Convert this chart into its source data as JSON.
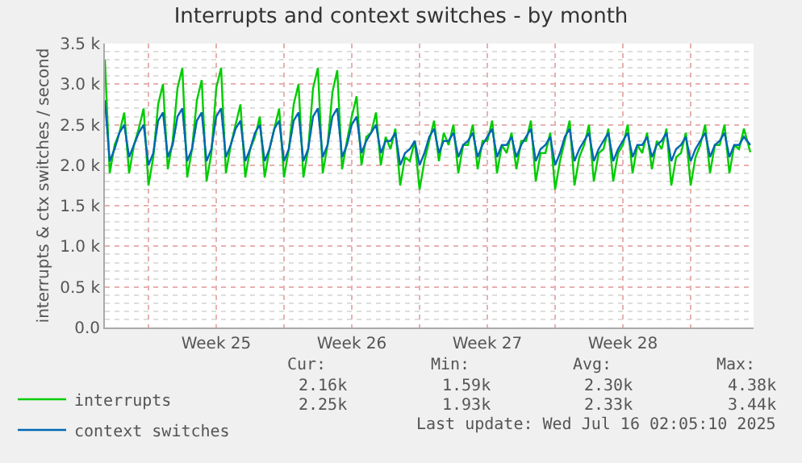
{
  "chart_data": {
    "type": "line",
    "title": "Interrupts and context switches - by month",
    "ylabel": "interrupts & ctx switches / second",
    "x": [
      "2025-06-12T18:00",
      "2025-06-13T00:00",
      "2025-06-13T06:00",
      "2025-06-13T12:00",
      "2025-06-13T18:00",
      "2025-06-14T00:00",
      "2025-06-14T06:00",
      "2025-06-14T12:00",
      "2025-06-14T18:00",
      "2025-06-15T00:00",
      "2025-06-15T06:00",
      "2025-06-15T12:00",
      "2025-06-15T18:00",
      "2025-06-16T00:00",
      "2025-06-16T06:00",
      "2025-06-16T12:00",
      "2025-06-16T18:00",
      "2025-06-17T00:00",
      "2025-06-17T06:00",
      "2025-06-17T12:00",
      "2025-06-17T18:00",
      "2025-06-18T00:00",
      "2025-06-18T06:00",
      "2025-06-18T12:00",
      "2025-06-18T18:00",
      "2025-06-19T00:00",
      "2025-06-19T06:00",
      "2025-06-19T12:00",
      "2025-06-19T18:00",
      "2025-06-20T00:00",
      "2025-06-20T06:00",
      "2025-06-20T12:00",
      "2025-06-20T18:00",
      "2025-06-21T00:00",
      "2025-06-21T06:00",
      "2025-06-21T12:00",
      "2025-06-21T18:00",
      "2025-06-22T00:00",
      "2025-06-22T06:00",
      "2025-06-22T12:00",
      "2025-06-22T18:00",
      "2025-06-23T00:00",
      "2025-06-23T06:00",
      "2025-06-23T12:00",
      "2025-06-23T18:00",
      "2025-06-24T00:00",
      "2025-06-24T06:00",
      "2025-06-24T12:00",
      "2025-06-24T18:00",
      "2025-06-25T00:00",
      "2025-06-25T06:00",
      "2025-06-25T12:00",
      "2025-06-25T18:00",
      "2025-06-26T00:00",
      "2025-06-26T06:00",
      "2025-06-26T12:00",
      "2025-06-26T18:00",
      "2025-06-27T00:00",
      "2025-06-27T06:00",
      "2025-06-27T12:00",
      "2025-06-27T18:00",
      "2025-06-28T00:00",
      "2025-06-28T06:00",
      "2025-06-28T12:00",
      "2025-06-28T18:00",
      "2025-06-29T00:00",
      "2025-06-29T06:00",
      "2025-06-29T12:00",
      "2025-06-29T18:00",
      "2025-06-30T00:00",
      "2025-06-30T06:00",
      "2025-06-30T12:00",
      "2025-06-30T18:00",
      "2025-07-01T00:00",
      "2025-07-01T06:00",
      "2025-07-01T12:00",
      "2025-07-01T18:00",
      "2025-07-02T00:00",
      "2025-07-02T06:00",
      "2025-07-02T12:00",
      "2025-07-02T18:00",
      "2025-07-03T00:00",
      "2025-07-03T06:00",
      "2025-07-03T12:00",
      "2025-07-03T18:00",
      "2025-07-04T00:00",
      "2025-07-04T06:00",
      "2025-07-04T12:00",
      "2025-07-04T18:00",
      "2025-07-05T00:00",
      "2025-07-05T06:00",
      "2025-07-05T12:00",
      "2025-07-05T18:00",
      "2025-07-06T00:00",
      "2025-07-06T06:00",
      "2025-07-06T12:00",
      "2025-07-06T18:00",
      "2025-07-07T00:00",
      "2025-07-07T06:00",
      "2025-07-07T12:00",
      "2025-07-07T18:00",
      "2025-07-08T00:00",
      "2025-07-08T06:00",
      "2025-07-08T12:00",
      "2025-07-08T18:00",
      "2025-07-09T00:00",
      "2025-07-09T06:00",
      "2025-07-09T12:00",
      "2025-07-09T18:00",
      "2025-07-10T00:00",
      "2025-07-10T06:00",
      "2025-07-10T12:00",
      "2025-07-10T18:00",
      "2025-07-11T00:00",
      "2025-07-11T06:00",
      "2025-07-11T12:00",
      "2025-07-11T18:00",
      "2025-07-12T00:00",
      "2025-07-12T06:00",
      "2025-07-12T12:00",
      "2025-07-12T18:00",
      "2025-07-13T00:00",
      "2025-07-13T06:00",
      "2025-07-13T12:00",
      "2025-07-13T18:00",
      "2025-07-14T00:00",
      "2025-07-14T06:00",
      "2025-07-14T12:00",
      "2025-07-14T18:00",
      "2025-07-15T00:00",
      "2025-07-15T06:00",
      "2025-07-15T12:00",
      "2025-07-15T18:00",
      "2025-07-16T02:00"
    ],
    "series": [
      {
        "name": "interrupts",
        "color": "#00cc00",
        "values": [
          3300,
          1900,
          2250,
          2400,
          2650,
          1900,
          2250,
          2450,
          2700,
          1750,
          2100,
          2750,
          3000,
          1950,
          2300,
          2950,
          3200,
          1850,
          2200,
          2800,
          3050,
          1800,
          2150,
          2950,
          3200,
          1900,
          2250,
          2500,
          2750,
          1850,
          2200,
          2350,
          2600,
          1850,
          2200,
          2450,
          2700,
          1850,
          2200,
          2750,
          3000,
          1850,
          2200,
          2950,
          3200,
          1900,
          2250,
          2900,
          3170,
          1950,
          2300,
          2600,
          2850,
          2000,
          2350,
          2400,
          2650,
          2000,
          2350,
          2200,
          2450,
          1750,
          2100,
          2050,
          2300,
          1700,
          2050,
          2300,
          2550,
          2050,
          2400,
          2250,
          2500,
          1900,
          2250,
          2250,
          2500,
          1950,
          2300,
          2300,
          2550,
          1900,
          2250,
          2150,
          2400,
          1950,
          2300,
          2300,
          2550,
          1800,
          2150,
          2150,
          2400,
          1700,
          2050,
          2300,
          2550,
          1750,
          2100,
          2250,
          2500,
          1800,
          2150,
          2200,
          2450,
          1800,
          2150,
          2250,
          2500,
          1900,
          2250,
          2150,
          2400,
          1950,
          2300,
          2200,
          2450,
          1750,
          2100,
          2150,
          2400,
          1750,
          2100,
          2250,
          2500,
          1900,
          2250,
          2250,
          2500,
          1900,
          2250,
          2200,
          2450,
          2160
        ]
      },
      {
        "name": "context switches",
        "color": "#0066b3",
        "values": [
          2800,
          2050,
          2200,
          2400,
          2500,
          2100,
          2250,
          2400,
          2500,
          2000,
          2150,
          2550,
          2650,
          2100,
          2250,
          2600,
          2700,
          2050,
          2200,
          2550,
          2650,
          2050,
          2200,
          2600,
          2700,
          2100,
          2250,
          2450,
          2550,
          2050,
          2200,
          2400,
          2500,
          2050,
          2200,
          2450,
          2550,
          2050,
          2200,
          2550,
          2650,
          2050,
          2200,
          2600,
          2700,
          2100,
          2250,
          2600,
          2700,
          2100,
          2250,
          2500,
          2600,
          2150,
          2300,
          2400,
          2500,
          2150,
          2300,
          2300,
          2400,
          2000,
          2150,
          2200,
          2300,
          2000,
          2150,
          2350,
          2450,
          2150,
          2300,
          2300,
          2400,
          2100,
          2250,
          2300,
          2400,
          2100,
          2250,
          2350,
          2450,
          2100,
          2250,
          2250,
          2350,
          2100,
          2250,
          2350,
          2450,
          2050,
          2200,
          2250,
          2350,
          2000,
          2150,
          2350,
          2450,
          2050,
          2200,
          2300,
          2400,
          2050,
          2200,
          2300,
          2400,
          2050,
          2200,
          2300,
          2400,
          2100,
          2250,
          2250,
          2350,
          2100,
          2250,
          2300,
          2400,
          2050,
          2200,
          2250,
          2350,
          2050,
          2200,
          2300,
          2400,
          2100,
          2250,
          2300,
          2400,
          2100,
          2250,
          2250,
          2350,
          2250
        ]
      }
    ],
    "xlim": [
      "2025-06-12T18:00",
      "2025-07-16T06:00"
    ],
    "xticks": [
      {
        "value": "2025-06-15T00:00",
        "label": null
      },
      {
        "value": "2025-06-18T12:00",
        "label": "Week 25"
      },
      {
        "value": "2025-06-22T00:00",
        "label": null
      },
      {
        "value": "2025-06-25T12:00",
        "label": "Week 26"
      },
      {
        "value": "2025-06-29T00:00",
        "label": null
      },
      {
        "value": "2025-07-02T12:00",
        "label": "Week 27"
      },
      {
        "value": "2025-07-06T00:00",
        "label": null
      },
      {
        "value": "2025-07-09T12:00",
        "label": "Week 28"
      },
      {
        "value": "2025-07-13T00:00",
        "label": null
      }
    ],
    "ylim": [
      0,
      3500
    ],
    "yticks": [
      {
        "value": 0,
        "label": "0.0"
      },
      {
        "value": 500,
        "label": "0.5 k"
      },
      {
        "value": 1000,
        "label": "1.0 k"
      },
      {
        "value": 1500,
        "label": "1.5 k"
      },
      {
        "value": 2000,
        "label": "2.0 k"
      },
      {
        "value": 2500,
        "label": "2.5 k"
      },
      {
        "value": 3000,
        "label": "3.0 k"
      },
      {
        "value": 3500,
        "label": "3.5 k"
      }
    ],
    "grid": true,
    "legend": "bottom left",
    "line_style": "solid",
    "annotations": [
      "Cur:",
      "Min:",
      "Avg:",
      "Max:",
      "2.16k",
      "1.59k",
      "2.30k",
      "4.38k",
      "2.25k",
      "1.93k",
      "2.33k",
      "3.44k",
      "Last update: Wed Jul 16 02:05:10 2025"
    ]
  }
}
